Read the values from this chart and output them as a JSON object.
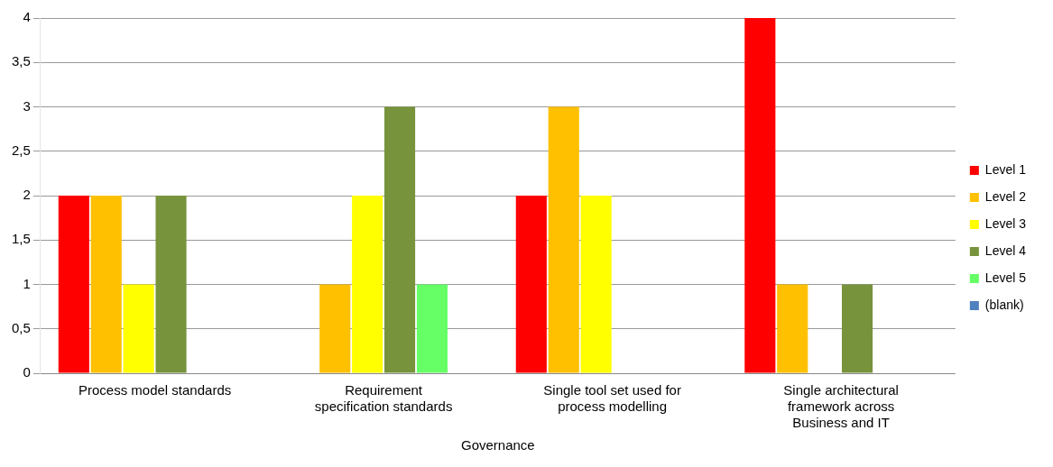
{
  "chart_data": {
    "type": "bar",
    "xlabel": "Governance",
    "categories": [
      "Process model standards",
      "Requirement specification standards",
      "Single tool set used for process modelling",
      "Single architectural framework across Business and IT"
    ],
    "series": [
      {
        "name": "Level 1",
        "color": "#ff0000",
        "values": [
          2,
          null,
          2,
          4
        ]
      },
      {
        "name": "Level 2",
        "color": "#ffc000",
        "values": [
          2,
          1,
          3,
          1
        ]
      },
      {
        "name": "Level 3",
        "color": "#ffff00",
        "values": [
          1,
          2,
          2,
          null
        ]
      },
      {
        "name": "Level 4",
        "color": "#77933c",
        "values": [
          2,
          3,
          null,
          1
        ]
      },
      {
        "name": "Level 5",
        "color": "#66ff66",
        "values": [
          null,
          1,
          null,
          null
        ]
      },
      {
        "name": "(blank)",
        "color": "#4f81bd",
        "values": [
          null,
          null,
          null,
          null
        ]
      }
    ],
    "ylim": [
      0,
      4
    ],
    "yticks": [
      0,
      {
        "value": 0.5,
        "label": "0,5"
      },
      1,
      {
        "value": 1.5,
        "label": "1,5"
      },
      2,
      {
        "value": 2.5,
        "label": "2,5"
      },
      3,
      {
        "value": 3.5,
        "label": "3,5"
      },
      4
    ],
    "grid": "y",
    "legend": "right"
  }
}
